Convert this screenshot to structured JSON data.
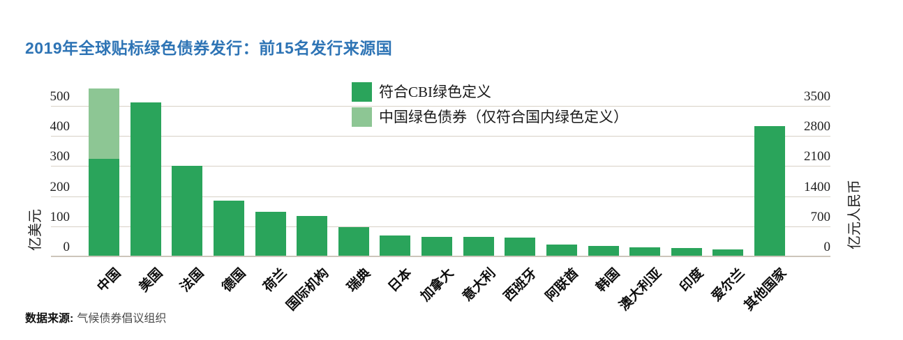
{
  "title": "2019年全球贴标绿色债券发行：前15名发行来源国",
  "source": {
    "label": "数据来源:",
    "value": "气候债券倡议组织"
  },
  "colors": {
    "title": "#2e74b5",
    "aligned_green": "#2aa45b",
    "china_only_green": "#8dc694",
    "gridline": "#d8d1c6",
    "baseline": "#ccc5ba"
  },
  "chart_data": {
    "type": "bar",
    "title": "2019年全球贴标绿色债券发行：前15名发行来源国",
    "categories": [
      "中国",
      "美国",
      "法国",
      "德国",
      "荷兰",
      "国际机构",
      "瑞典",
      "日本",
      "加拿大",
      "意大利",
      "西班牙",
      "阿联酋",
      "韩国",
      "澳大利亚",
      "印度",
      "爱尔兰",
      "其他国家"
    ],
    "series": [
      {
        "name": "符合CBI绿色定义",
        "color": "#2aa45b",
        "values": [
          325,
          512,
          302,
          185,
          148,
          134,
          98,
          69,
          66,
          66,
          63,
          39,
          35,
          30,
          28,
          23,
          433
        ]
      },
      {
        "name": "中国绿色债券（仅符合国内绿色定义）",
        "color": "#8dc694",
        "values": [
          233,
          0,
          0,
          0,
          0,
          0,
          0,
          0,
          0,
          0,
          0,
          0,
          0,
          0,
          0,
          0,
          0
        ]
      }
    ],
    "stacked": true,
    "grid": true,
    "legend_position": "top-center",
    "left_axis": {
      "label": "亿美元",
      "ticks": [
        0,
        100,
        200,
        300,
        400,
        500
      ]
    },
    "right_axis": {
      "label": "亿元人民币",
      "ticks": [
        0,
        700,
        1400,
        2100,
        2800,
        3500
      ]
    },
    "ylim_left": [
      0,
      500
    ],
    "ylim_right": [
      0,
      3500
    ]
  }
}
